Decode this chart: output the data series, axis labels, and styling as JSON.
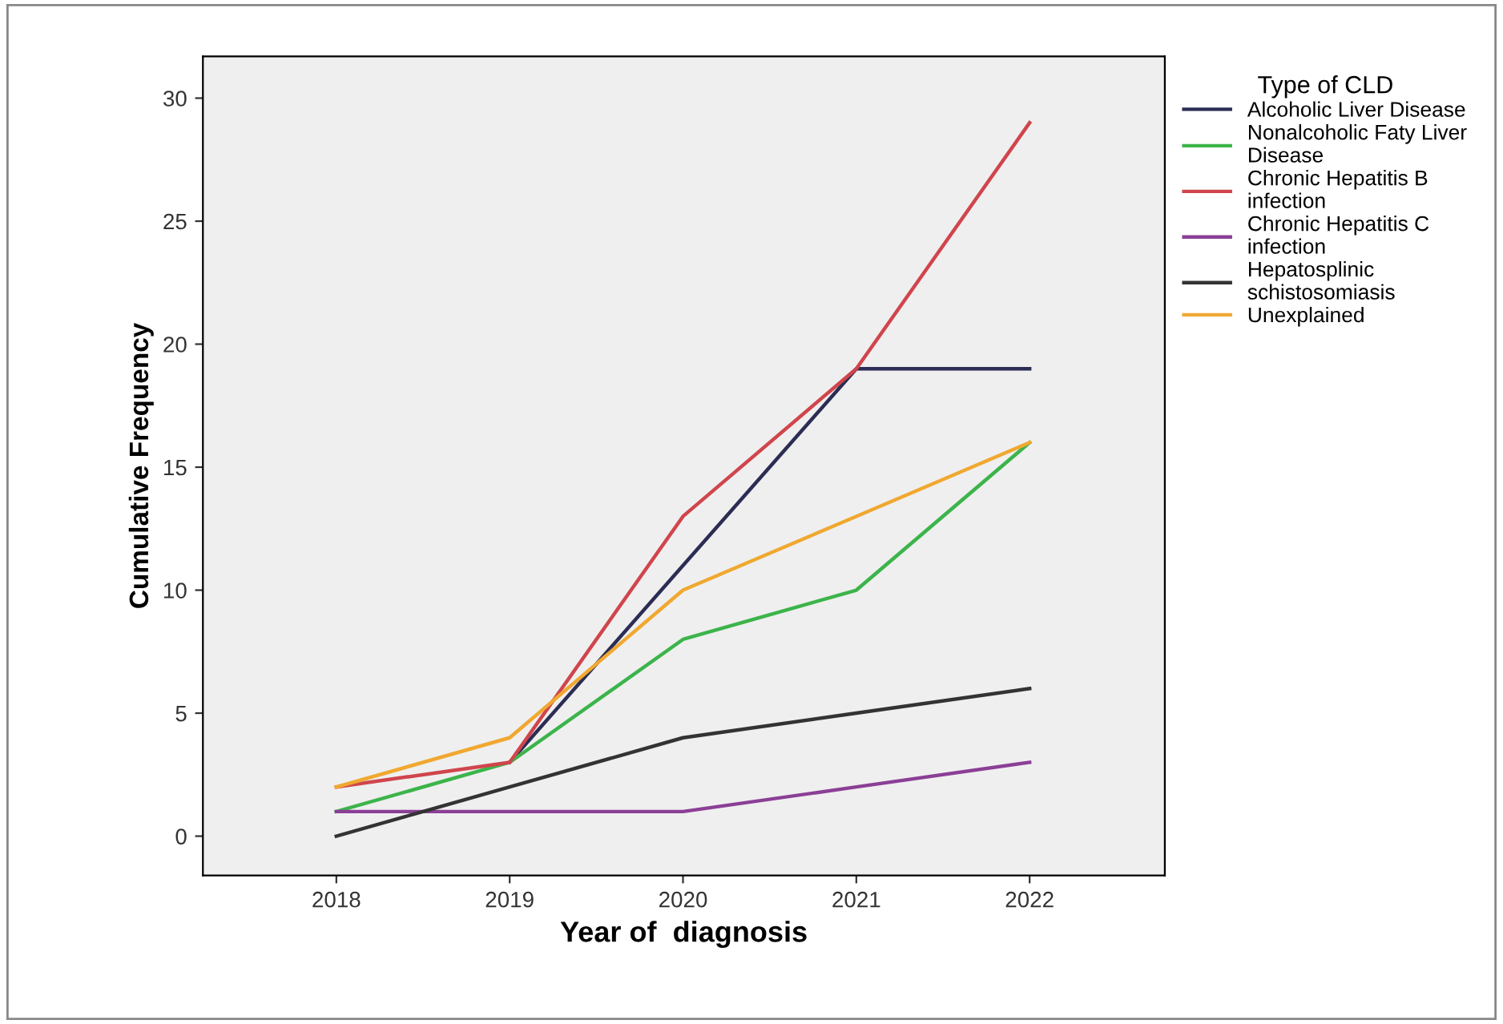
{
  "chart_data": {
    "type": "line",
    "xlabel": "Year of  diagnosis",
    "ylabel": "Cumulative Frequency",
    "legend_title": "Type of CLD",
    "x": [
      2018,
      2019,
      2020,
      2021,
      2022
    ],
    "series": [
      {
        "name": "Alcoholic Liver Disease",
        "color": "#2b2d54",
        "values": [
          null,
          3,
          11,
          19,
          19
        ]
      },
      {
        "name": "Nonalcoholic Faty Liver\nDisease",
        "color": "#3cb44b",
        "values": [
          1,
          3,
          8,
          10,
          16
        ]
      },
      {
        "name": "Chronic Hepatitis B\ninfection",
        "color": "#d0454c",
        "values": [
          2,
          3,
          13,
          19,
          29
        ]
      },
      {
        "name": "Chronic Hepatitis C\ninfection",
        "color": "#8b3f96",
        "values": [
          1,
          1,
          1,
          2,
          3
        ]
      },
      {
        "name": "Hepatosplinic\nschistosomiasis",
        "color": "#333333",
        "values": [
          0,
          2,
          4,
          5,
          6
        ]
      },
      {
        "name": "Unexplained",
        "color": "#f0a830",
        "values": [
          2,
          4,
          10,
          13,
          16
        ]
      }
    ],
    "xlim": [
      2017.23,
      2022.78
    ],
    "xticks": [
      2018,
      2019,
      2020,
      2021,
      2022
    ],
    "ylim": [
      -1.6,
      31.7
    ],
    "yticks": [
      0,
      5,
      10,
      15,
      20,
      25,
      30
    ],
    "grid": false,
    "legend": "right",
    "marker": "none",
    "line_style": "solid"
  }
}
